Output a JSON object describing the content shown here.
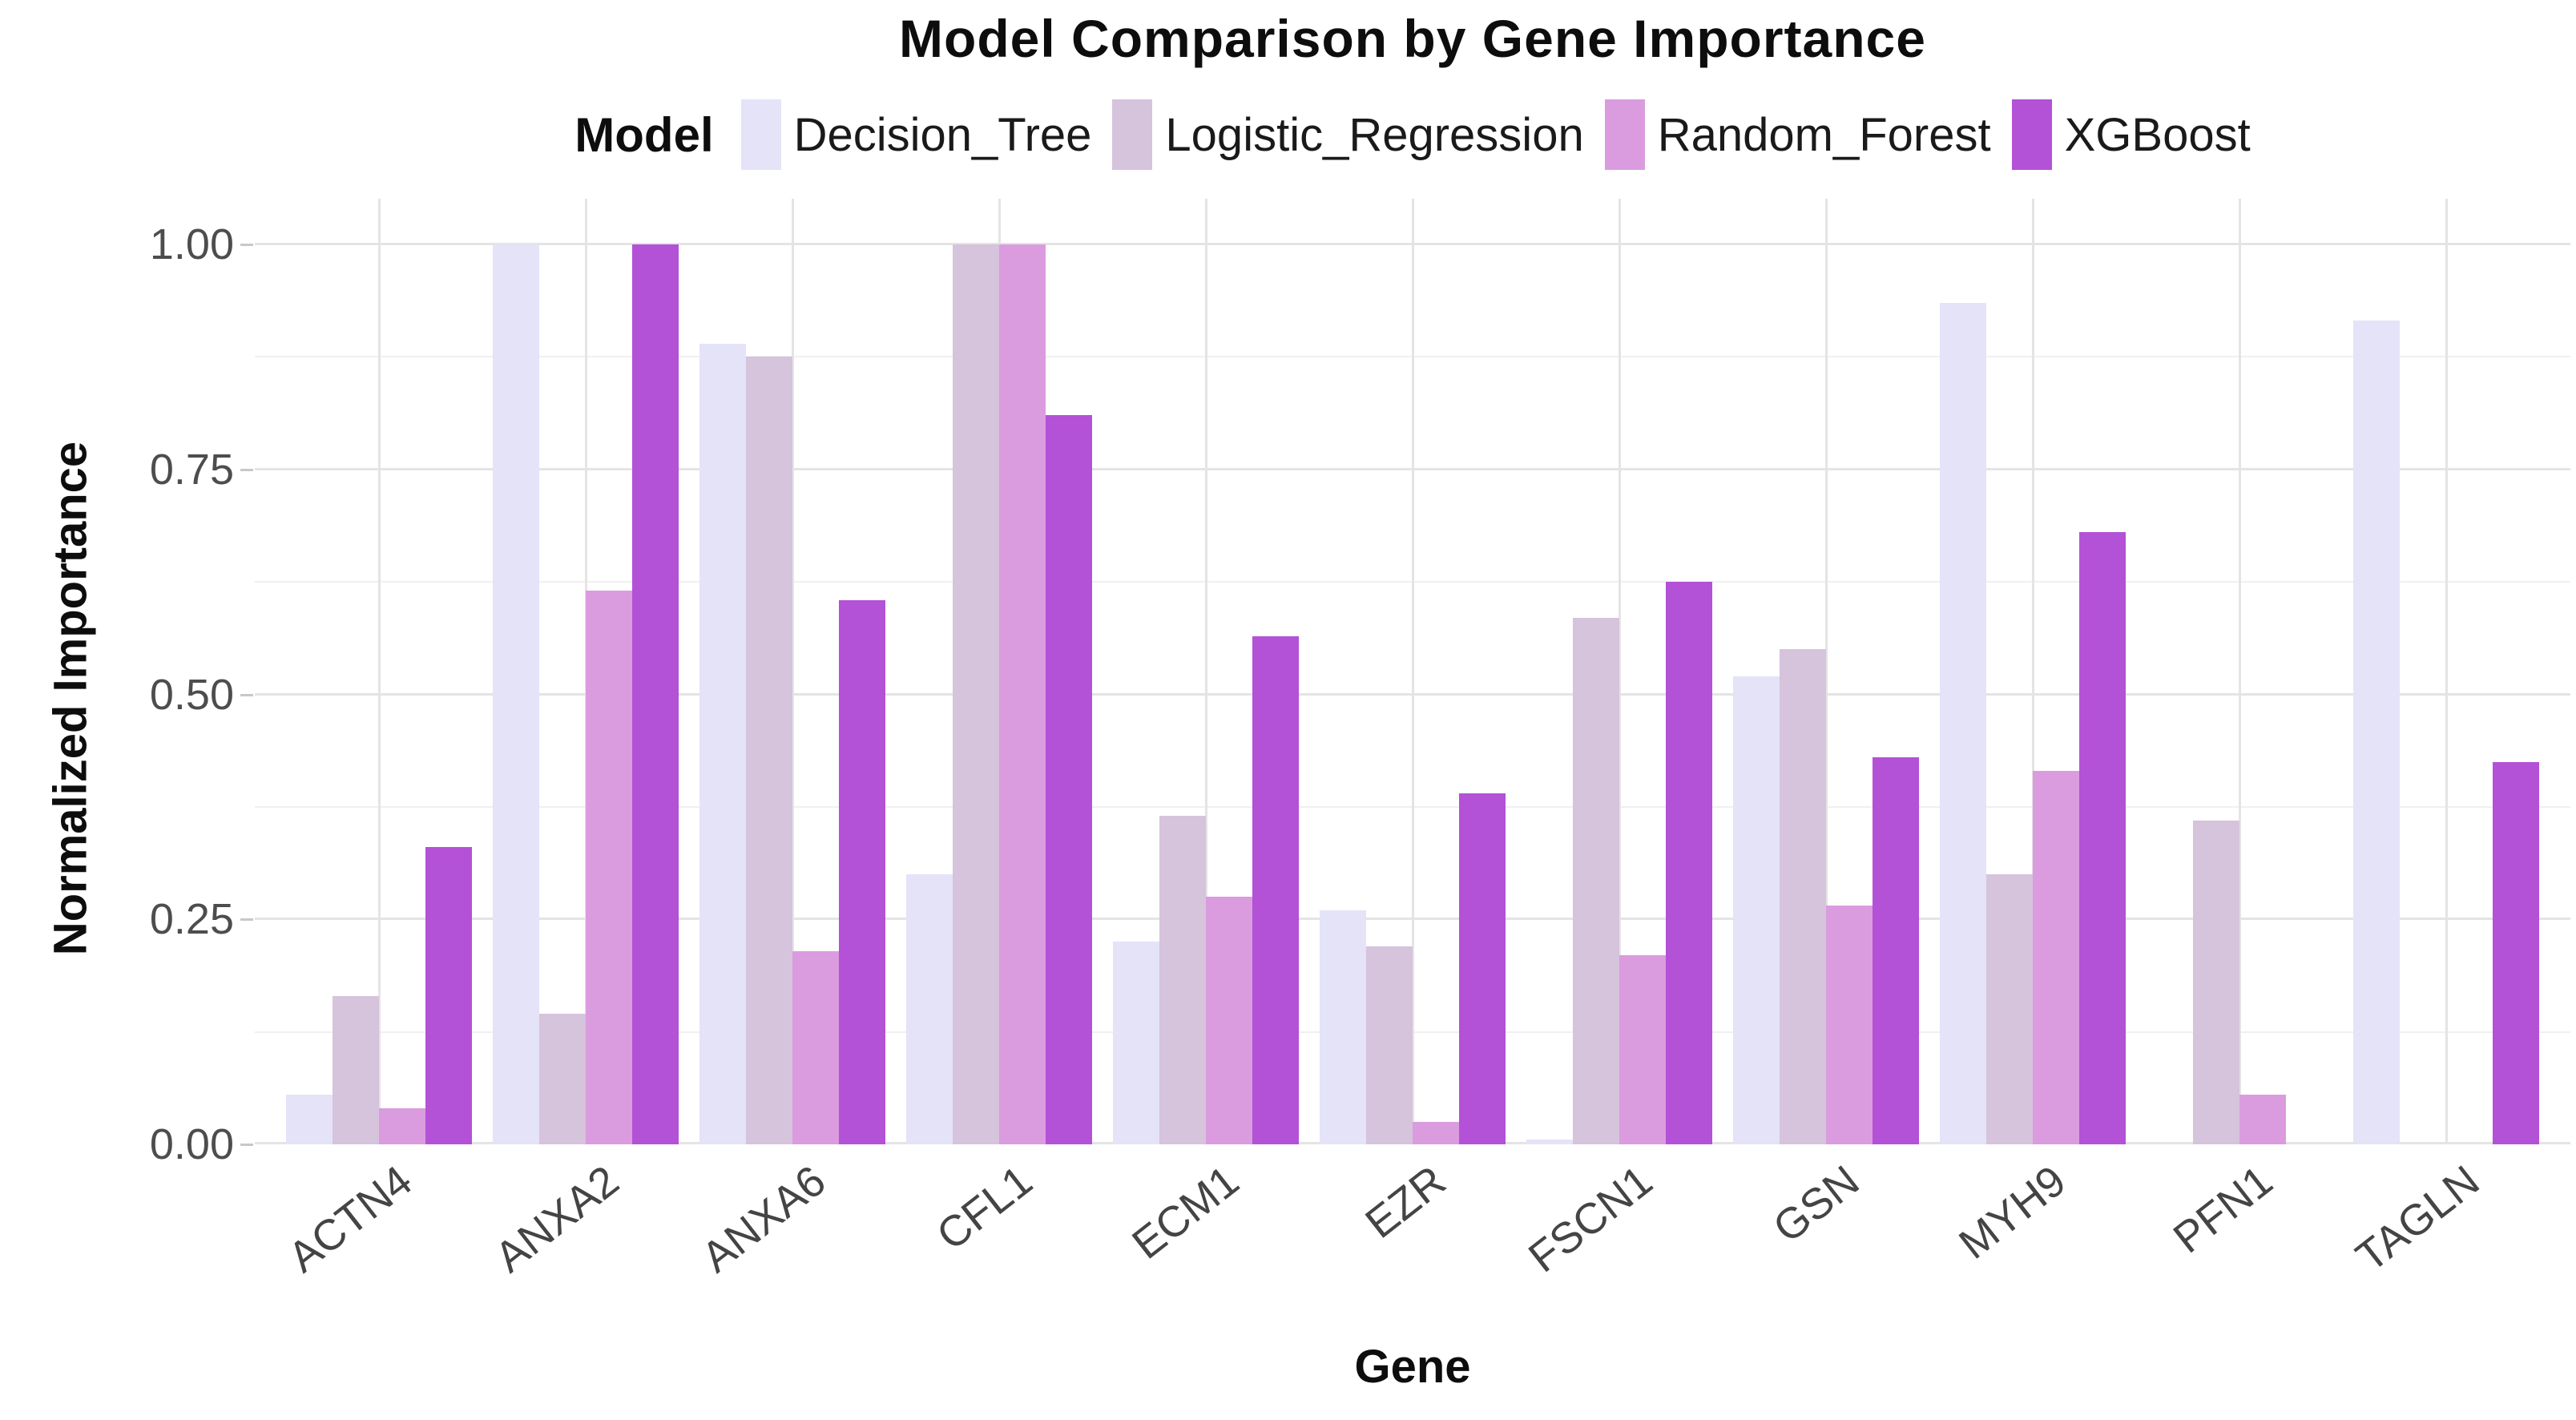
{
  "title": "Model Comparison by Gene Importance",
  "legend": {
    "title": "Model",
    "entries": [
      {
        "label": "Decision_Tree",
        "color": "#e4e3f8"
      },
      {
        "label": "Logistic_Regression",
        "color": "#d6c3dc"
      },
      {
        "label": "Random_Forest",
        "color": "#da9cdf"
      },
      {
        "label": "XGBoost",
        "color": "#b351d7"
      }
    ]
  },
  "y_axis": {
    "label": "Normalized Importance",
    "ticks": [
      {
        "label": "0.00",
        "value": 0.0
      },
      {
        "label": "0.25",
        "value": 0.25
      },
      {
        "label": "0.50",
        "value": 0.5
      },
      {
        "label": "0.75",
        "value": 0.75
      },
      {
        "label": "1.00",
        "value": 1.0
      }
    ]
  },
  "x_axis": {
    "label": "Gene"
  },
  "chart_data": {
    "type": "bar",
    "title": "Model Comparison by Gene Importance",
    "xlabel": "Gene",
    "ylabel": "Normalized Importance",
    "ylim": [
      0,
      1.05
    ],
    "grid": {
      "major": [
        0,
        0.25,
        0.5,
        0.75,
        1.0
      ],
      "minor": [
        0.125,
        0.375,
        0.625,
        0.875
      ]
    },
    "legend_position": "top",
    "categories": [
      "ACTN4",
      "ANXA2",
      "ANXA6",
      "CFL1",
      "ECM1",
      "EZR",
      "FSCN1",
      "GSN",
      "MYH9",
      "PFN1",
      "TAGLN"
    ],
    "series": [
      {
        "name": "Decision_Tree",
        "color": "#e4e3f8",
        "values": [
          0.055,
          1.0,
          0.89,
          0.3,
          0.225,
          0.26,
          0.005,
          0.52,
          0.935,
          0,
          0.915
        ]
      },
      {
        "name": "Logistic_Regression",
        "color": "#d6c3dc",
        "values": [
          0.165,
          0.145,
          0.875,
          1.0,
          0.365,
          0.22,
          0.585,
          0.55,
          0.3,
          0.36,
          0
        ]
      },
      {
        "name": "Random_Forest",
        "color": "#da9cdf",
        "values": [
          0.04,
          0.615,
          0.215,
          1.0,
          0.275,
          0.025,
          0.21,
          0.265,
          0.415,
          0.055,
          0
        ]
      },
      {
        "name": "XGBoost",
        "color": "#b351d7",
        "values": [
          0.33,
          1.0,
          0.605,
          0.81,
          0.565,
          0.39,
          0.625,
          0.43,
          0.68,
          0,
          0.425
        ]
      }
    ]
  }
}
